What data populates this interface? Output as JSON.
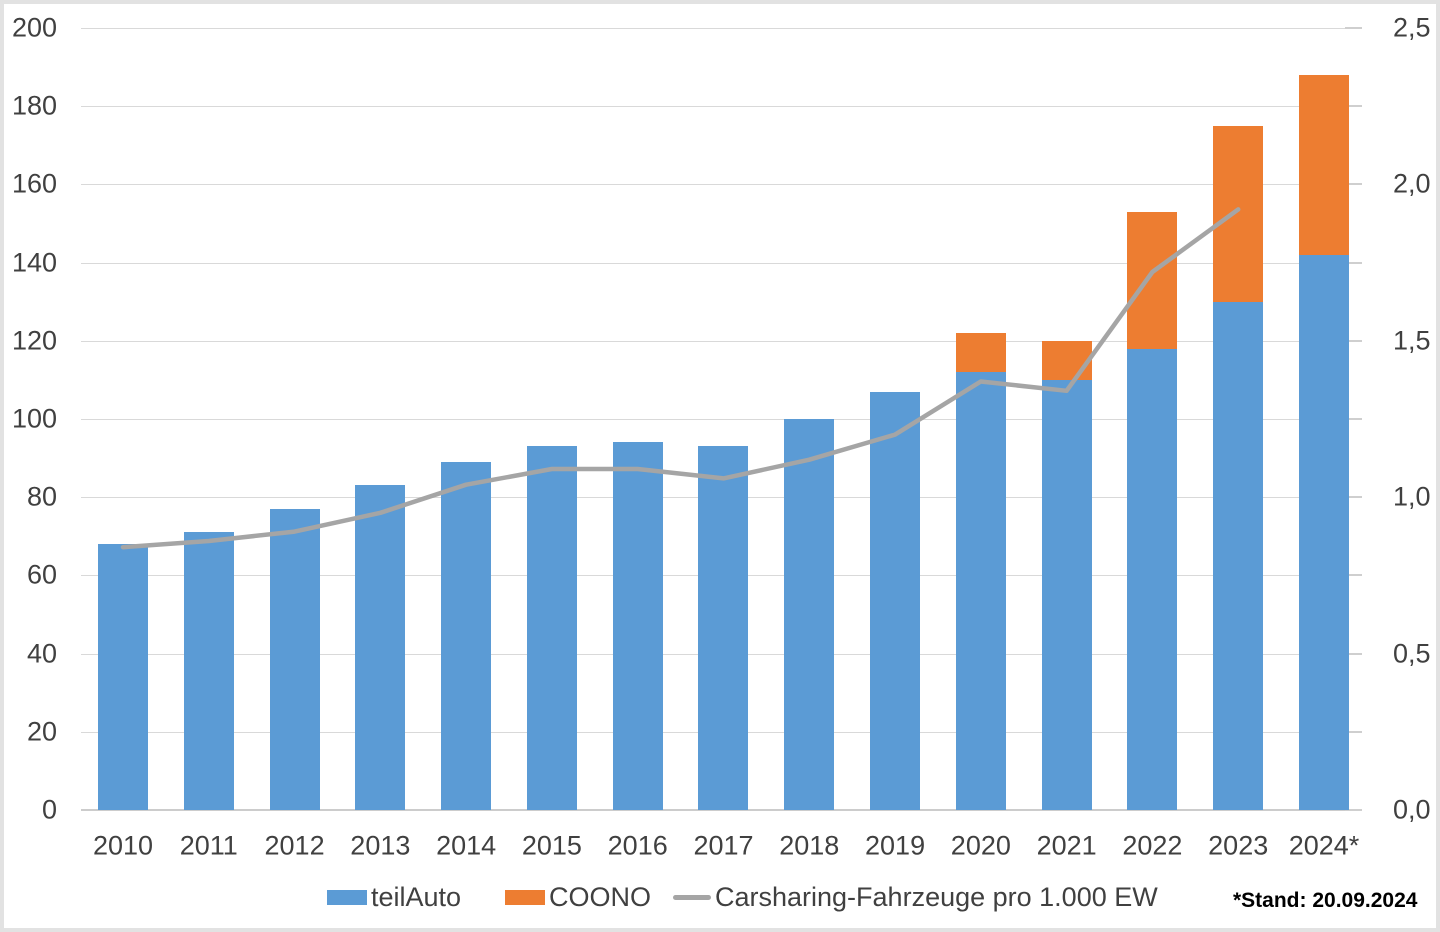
{
  "chart_data": {
    "type": "bar",
    "subtype": "stacked-bar-with-line",
    "categories": [
      "2010",
      "2011",
      "2012",
      "2013",
      "2014",
      "2015",
      "2016",
      "2017",
      "2018",
      "2019",
      "2020",
      "2021",
      "2022",
      "2023",
      "2024*"
    ],
    "series": [
      {
        "name": "teilAuto",
        "type": "bar",
        "stack": true,
        "color": "#5B9BD5",
        "axis": "left",
        "values": [
          68,
          71,
          77,
          83,
          89,
          93,
          94,
          93,
          100,
          107,
          112,
          110,
          118,
          130,
          142
        ]
      },
      {
        "name": "COONO",
        "type": "bar",
        "stack": true,
        "color": "#ED7D31",
        "axis": "left",
        "values": [
          0,
          0,
          0,
          0,
          0,
          0,
          0,
          0,
          0,
          0,
          10,
          10,
          35,
          45,
          46
        ]
      },
      {
        "name": "Carsharing-Fahrzeuge pro 1.000 EW",
        "type": "line",
        "color": "#A5A5A5",
        "axis": "right",
        "values": [
          0.84,
          0.86,
          0.89,
          0.95,
          1.04,
          1.09,
          1.09,
          1.06,
          1.12,
          1.2,
          1.37,
          1.34,
          1.72,
          1.92,
          null
        ]
      }
    ],
    "left_axis": {
      "min": 0,
      "max": 200,
      "step": 20,
      "tick_labels": [
        "0",
        "20",
        "40",
        "60",
        "80",
        "100",
        "120",
        "140",
        "160",
        "180",
        "200"
      ]
    },
    "right_axis": {
      "min": 0,
      "max": 2.5,
      "step": 0.5,
      "tick_labels": [
        "0,0",
        "0,5",
        "1,0",
        "1,5",
        "2,0",
        "2,5"
      ]
    },
    "grid": true,
    "legend_position": "bottom",
    "title": "",
    "xlabel": "",
    "ylabel": ""
  },
  "legend": {
    "items": [
      {
        "label": "teilAuto"
      },
      {
        "label": "COONO"
      },
      {
        "label": "Carsharing-Fahrzeuge pro 1.000 EW"
      }
    ]
  },
  "footer": {
    "note": "*Stand: 20.09.2024"
  },
  "colors": {
    "teilauto_blue": "#5B9BD5",
    "coono_orange": "#ED7D31",
    "line_gray": "#A5A5A5",
    "gridline": "#D9D9D9",
    "text": "#404040"
  }
}
